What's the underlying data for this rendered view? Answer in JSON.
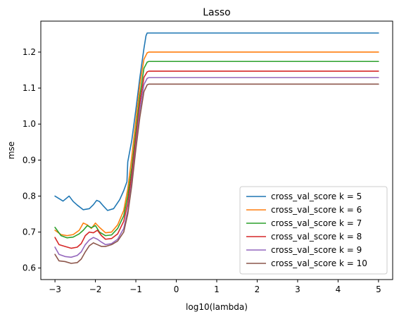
{
  "chart_data": {
    "type": "line",
    "title": "Lasso",
    "xlabel": "log10(lambda)",
    "ylabel": "mse",
    "xlim": [
      -3.35,
      5.35
    ],
    "ylim": [
      0.568,
      1.286
    ],
    "xticks": [
      -3,
      -2,
      -1,
      0,
      1,
      2,
      3,
      4,
      5
    ],
    "xtick_labels": [
      "−3",
      "−2",
      "−1",
      "0",
      "1",
      "2",
      "3",
      "4",
      "5"
    ],
    "yticks": [
      0.6,
      0.7,
      0.8,
      0.9,
      1.0,
      1.1,
      1.2
    ],
    "ytick_labels": [
      "0.6",
      "0.7",
      "0.8",
      "0.9",
      "1.0",
      "1.1",
      "1.2"
    ],
    "grid": false,
    "legend_position": "lower-right",
    "series": [
      {
        "name": "cross_val_score k = 5",
        "color": "#1f77b4",
        "x": [
          -3.0,
          -2.8,
          -2.65,
          -2.55,
          -2.45,
          -2.3,
          -2.15,
          -2.05,
          -1.97,
          -1.9,
          -1.8,
          -1.7,
          -1.55,
          -1.4,
          -1.3,
          -1.22,
          -1.2,
          -1.1,
          -1.0,
          -0.9,
          -0.8,
          -0.75,
          -0.72,
          0.0,
          1.0,
          2.0,
          3.0,
          4.0,
          5.0
        ],
        "y": [
          0.8,
          0.786,
          0.8,
          0.785,
          0.775,
          0.762,
          0.765,
          0.776,
          0.788,
          0.785,
          0.772,
          0.76,
          0.765,
          0.79,
          0.815,
          0.84,
          0.895,
          0.955,
          1.04,
          1.13,
          1.21,
          1.245,
          1.253,
          1.253,
          1.253,
          1.253,
          1.253,
          1.253,
          1.253
        ]
      },
      {
        "name": "cross_val_score k = 6",
        "color": "#ff7f0e",
        "x": [
          -3.0,
          -2.85,
          -2.7,
          -2.55,
          -2.4,
          -2.3,
          -2.2,
          -2.1,
          -2.0,
          -1.9,
          -1.75,
          -1.6,
          -1.45,
          -1.3,
          -1.2,
          -1.1,
          -1.0,
          -0.9,
          -0.8,
          -0.72,
          -0.68,
          0.0,
          1.0,
          2.0,
          3.0,
          4.0,
          5.0
        ],
        "y": [
          0.705,
          0.693,
          0.69,
          0.693,
          0.705,
          0.725,
          0.72,
          0.71,
          0.725,
          0.713,
          0.698,
          0.7,
          0.72,
          0.76,
          0.82,
          0.91,
          1.01,
          1.11,
          1.18,
          1.198,
          1.2,
          1.2,
          1.2,
          1.2,
          1.2,
          1.2,
          1.2
        ]
      },
      {
        "name": "cross_val_score k = 7",
        "color": "#2ca02c",
        "x": [
          -3.0,
          -2.85,
          -2.7,
          -2.55,
          -2.4,
          -2.3,
          -2.2,
          -2.1,
          -2.0,
          -1.9,
          -1.75,
          -1.6,
          -1.45,
          -1.3,
          -1.2,
          -1.1,
          -1.0,
          -0.9,
          -0.8,
          -0.72,
          -0.68,
          0.0,
          1.0,
          2.0,
          3.0,
          4.0,
          5.0
        ],
        "y": [
          0.713,
          0.69,
          0.684,
          0.686,
          0.695,
          0.705,
          0.718,
          0.712,
          0.718,
          0.7,
          0.69,
          0.692,
          0.71,
          0.745,
          0.8,
          0.88,
          0.98,
          1.08,
          1.155,
          1.172,
          1.174,
          1.174,
          1.174,
          1.174,
          1.174,
          1.174,
          1.174
        ]
      },
      {
        "name": "cross_val_score k = 8",
        "color": "#d62728",
        "x": [
          -3.0,
          -2.9,
          -2.75,
          -2.6,
          -2.45,
          -2.35,
          -2.25,
          -2.15,
          -2.05,
          -1.95,
          -1.85,
          -1.75,
          -1.6,
          -1.45,
          -1.3,
          -1.2,
          -1.1,
          -1.0,
          -0.9,
          -0.8,
          -0.72,
          -0.68,
          0.0,
          1.0,
          2.0,
          3.0,
          4.0,
          5.0
        ],
        "y": [
          0.685,
          0.665,
          0.66,
          0.655,
          0.658,
          0.668,
          0.69,
          0.7,
          0.698,
          0.705,
          0.69,
          0.68,
          0.682,
          0.695,
          0.73,
          0.78,
          0.86,
          0.96,
          1.06,
          1.13,
          1.145,
          1.147,
          1.147,
          1.147,
          1.147,
          1.147,
          1.147,
          1.147
        ]
      },
      {
        "name": "cross_val_score k = 9",
        "color": "#9467bd",
        "x": [
          -3.0,
          -2.9,
          -2.75,
          -2.6,
          -2.45,
          -2.35,
          -2.25,
          -2.15,
          -2.05,
          -1.95,
          -1.85,
          -1.75,
          -1.6,
          -1.45,
          -1.3,
          -1.2,
          -1.1,
          -1.0,
          -0.9,
          -0.8,
          -0.72,
          -0.68,
          0.0,
          1.0,
          2.0,
          3.0,
          4.0,
          5.0
        ],
        "y": [
          0.658,
          0.638,
          0.632,
          0.63,
          0.635,
          0.645,
          0.665,
          0.678,
          0.685,
          0.68,
          0.672,
          0.665,
          0.668,
          0.68,
          0.71,
          0.76,
          0.84,
          0.94,
          1.04,
          1.11,
          1.127,
          1.129,
          1.129,
          1.129,
          1.129,
          1.129,
          1.129,
          1.129
        ]
      },
      {
        "name": "cross_val_score k = 10",
        "color": "#8c564b",
        "x": [
          -3.0,
          -2.9,
          -2.75,
          -2.6,
          -2.45,
          -2.35,
          -2.25,
          -2.15,
          -2.05,
          -1.95,
          -1.85,
          -1.75,
          -1.6,
          -1.45,
          -1.3,
          -1.2,
          -1.1,
          -1.0,
          -0.9,
          -0.8,
          -0.72,
          -0.68,
          0.0,
          1.0,
          2.0,
          3.0,
          4.0,
          5.0
        ],
        "y": [
          0.638,
          0.62,
          0.618,
          0.613,
          0.615,
          0.625,
          0.645,
          0.662,
          0.67,
          0.665,
          0.66,
          0.66,
          0.665,
          0.675,
          0.7,
          0.75,
          0.83,
          0.93,
          1.02,
          1.09,
          1.109,
          1.111,
          1.111,
          1.111,
          1.111,
          1.111,
          1.111,
          1.111
        ]
      }
    ]
  }
}
